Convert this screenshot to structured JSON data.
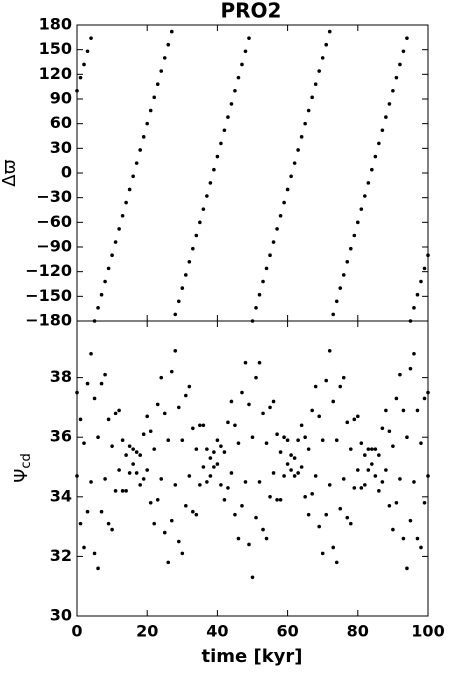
{
  "chart_data": [
    {
      "type": "scatter",
      "title": "PRO2",
      "ylabel": "Δϖ",
      "xlim": [
        0,
        100
      ],
      "ylim": [
        -180,
        180
      ],
      "yticks": [
        180,
        150,
        120,
        90,
        60,
        30,
        0,
        {
          "value": -30,
          "label": "−30"
        },
        {
          "value": -60,
          "label": "−60"
        },
        {
          "value": -90,
          "label": "−90"
        },
        {
          "value": -120,
          "label": "−120"
        },
        {
          "value": -150,
          "label": "−150"
        },
        {
          "value": -180,
          "label": "−180"
        }
      ],
      "x": [
        0,
        1,
        2,
        3,
        4,
        5,
        6,
        7,
        8,
        9,
        10,
        11,
        12,
        13,
        14,
        15,
        16,
        17,
        18,
        19,
        20,
        21,
        22,
        23,
        24,
        25,
        26,
        27,
        28,
        29,
        30,
        31,
        32,
        33,
        34,
        35,
        36,
        37,
        38,
        39,
        40,
        41,
        42,
        43,
        44,
        45,
        46,
        47,
        48,
        49,
        50,
        51,
        52,
        53,
        54,
        55,
        56,
        57,
        58,
        59,
        60,
        61,
        62,
        63,
        64,
        65,
        66,
        67,
        68,
        69,
        70,
        71,
        72,
        73,
        74,
        75,
        76,
        77,
        78,
        79,
        80,
        81,
        82,
        83,
        84,
        85,
        86,
        87,
        88,
        89,
        90,
        91,
        92,
        93,
        94,
        95,
        96,
        97,
        98,
        99,
        100
      ],
      "series": [
        {
          "color": "#000000",
          "values": [
            100,
            116,
            132,
            148,
            164,
            -180,
            -164,
            -148,
            -132,
            -116,
            -100,
            -84,
            -68,
            -52,
            -36,
            -20,
            -4,
            12,
            28,
            44,
            60,
            76,
            92,
            108,
            124,
            140,
            156,
            172,
            -172,
            -156,
            -140,
            -124,
            -108,
            -92,
            -76,
            -60,
            -44,
            -28,
            -12,
            4,
            20,
            36,
            52,
            68,
            84,
            100,
            116,
            132,
            148,
            164,
            -180,
            -164,
            -148,
            -132,
            -116,
            -100,
            -84,
            -68,
            -52,
            -36,
            -20,
            -4,
            12,
            28,
            44,
            60,
            76,
            92,
            108,
            124,
            140,
            156,
            172,
            -172,
            -156,
            -140,
            -124,
            -108,
            -92,
            -76,
            -60,
            -44,
            -28,
            -12,
            4,
            20,
            36,
            52,
            68,
            84,
            100,
            116,
            132,
            148,
            164,
            -180,
            -164,
            -148,
            -132,
            -116,
            -100
          ]
        }
      ]
    },
    {
      "type": "scatter",
      "ylabel": {
        "symbol": "Ψ",
        "subscript": "cd"
      },
      "xlabel": "time [kyr]",
      "xlim": [
        0,
        100
      ],
      "xticks": [
        0,
        20,
        40,
        60,
        80,
        100
      ],
      "ylim": [
        30,
        39.9
      ],
      "yticks": [
        30,
        32,
        34,
        36,
        38
      ],
      "x": [
        0,
        1,
        2,
        3,
        4,
        5,
        6,
        7,
        8,
        9,
        10,
        11,
        12,
        13,
        14,
        15,
        16,
        17,
        18,
        19,
        20,
        21,
        22,
        23,
        24,
        25,
        26,
        27,
        28,
        29,
        30,
        31,
        32,
        33,
        34,
        35,
        36,
        37,
        38,
        39,
        40,
        41,
        42,
        43,
        44,
        45,
        46,
        47,
        48,
        49,
        50,
        51,
        52,
        53,
        54,
        55,
        56,
        57,
        58,
        59,
        60,
        61,
        62,
        63,
        64,
        65,
        66,
        67,
        68,
        69,
        70,
        71,
        72,
        73,
        74,
        75,
        76,
        77,
        78,
        79,
        80,
        81,
        82,
        83,
        84,
        85,
        86,
        87,
        88,
        89,
        90,
        91,
        92,
        93,
        94,
        95,
        96,
        97,
        98,
        99,
        100
      ],
      "series": [
        {
          "color": "#000000",
          "values": [
            37.5,
            36.6,
            35.8,
            37.8,
            38.8,
            37.3,
            36.0,
            37.8,
            38.1,
            36.6,
            35.7,
            36.8,
            36.9,
            35.9,
            35.4,
            35.7,
            35.6,
            35.5,
            35.4,
            36.1,
            36.7,
            36.2,
            35.6,
            37.1,
            38.0,
            36.8,
            35.9,
            38.2,
            38.9,
            37.0,
            35.9,
            37.4,
            37.7,
            36.3,
            35.6,
            36.4,
            36.4,
            35.6,
            35.3,
            35.5,
            35.9,
            35.7,
            35.5,
            36.5,
            37.2,
            36.4,
            35.8,
            37.5,
            38.5,
            37.1,
            36.0,
            38.0,
            38.5,
            36.8,
            35.8,
            37.0,
            37.2,
            36.1,
            35.5,
            36.0,
            35.9,
            35.4,
            35.3,
            35.9,
            36.4,
            36.0,
            35.6,
            36.9,
            37.7,
            36.7,
            35.9,
            37.9,
            38.9,
            37.2,
            35.9,
            37.7,
            38.0,
            36.5,
            35.6,
            36.6,
            36.7,
            35.8,
            35.4,
            35.6,
            35.6,
            35.6,
            35.4,
            36.3,
            36.9,
            36.2,
            35.7,
            37.3,
            38.1,
            36.9,
            36.0,
            38.3,
            38.8,
            36.9,
            35.8,
            37.3,
            37.5
          ]
        },
        {
          "color": "#000000",
          "values": [
            34.7,
            33.1,
            32.3,
            33.5,
            34.5,
            32.1,
            31.6,
            33.5,
            34.6,
            33.1,
            32.9,
            34.2,
            34.9,
            34.2,
            34.2,
            34.8,
            35.1,
            34.8,
            34.4,
            34.6,
            34.9,
            33.8,
            33.1,
            33.9,
            34.6,
            32.8,
            31.8,
            33.2,
            34.4,
            32.5,
            32.1,
            33.7,
            34.7,
            33.5,
            33.4,
            34.4,
            35.0,
            34.5,
            34.7,
            35.0,
            35.1,
            34.4,
            33.9,
            34.3,
            34.8,
            33.4,
            32.6,
            33.7,
            34.5,
            32.4,
            31.3,
            33.3,
            34.5,
            32.9,
            32.6,
            34.0,
            34.8,
            33.9,
            33.9,
            34.7,
            35.1,
            34.9,
            34.7,
            34.8,
            35.0,
            34.0,
            33.4,
            34.1,
            34.7,
            33.0,
            32.1,
            33.4,
            34.4,
            32.3,
            31.8,
            33.6,
            34.6,
            33.3,
            33.1,
            34.3,
            34.9,
            34.3,
            34.4,
            34.9,
            35.1,
            34.7,
            34.2,
            34.5,
            34.9,
            33.7,
            32.9,
            33.8,
            34.6,
            32.6,
            31.6,
            33.2,
            34.5,
            32.6,
            32.3,
            33.8,
            34.7
          ]
        }
      ]
    }
  ]
}
